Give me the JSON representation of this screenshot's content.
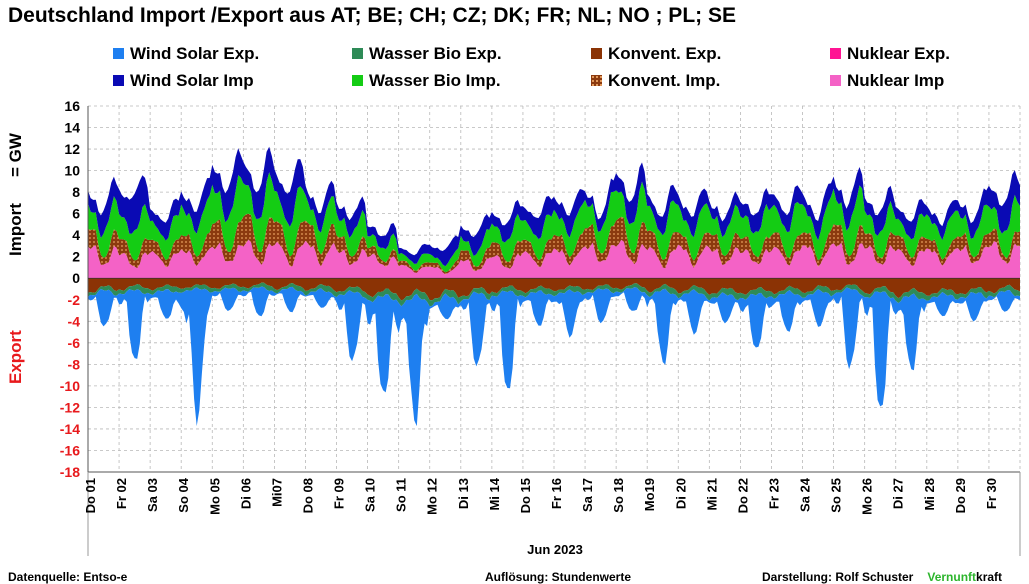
{
  "chart_data": {
    "type": "area",
    "title": "Deutschland  Import /Export  aus AT;  BE;  CH;  CZ;  DK;  FR;  NL;  NO ;  PL;  SE",
    "xlabel": "Jun 2023",
    "ylabel_import": "Import",
    "ylabel_unit": "=  GW",
    "ylabel_export": "Export",
    "ylim": [
      -18,
      16
    ],
    "y_ticks": [
      16,
      14,
      12,
      10,
      8,
      6,
      4,
      2,
      0,
      -2,
      -4,
      -6,
      -8,
      -10,
      -12,
      -14,
      -16,
      -18
    ],
    "grid": true,
    "legend_position": "top",
    "categories": [
      "Do 01",
      "Fr 02",
      "Sa 03",
      "So 04",
      "Mo 05",
      "Di 06",
      "Mi07",
      "Do 08",
      "Fr 09",
      "Sa 10",
      "So 11",
      "Mo 12",
      "Di 13",
      "Mi 14",
      "Do 15",
      "Fr 16",
      "Sa 17",
      "So 18",
      "Mo19",
      "Di 20",
      "Mi 21",
      "Do 22",
      "Fr 23",
      "Sa 24",
      "So 25",
      "Mo 26",
      "Di 27",
      "Mi 28",
      "Do 29",
      "Fr 30"
    ],
    "import_series": [
      {
        "name": "Nuklear Imp",
        "color": "#f462c6",
        "values": [
          2.8,
          2.2,
          2.4,
          2.6,
          3.0,
          3.2,
          3.0,
          3.1,
          2.6,
          2.2,
          1.2,
          1.0,
          1.6,
          2.0,
          2.4,
          2.7,
          3.0,
          3.2,
          2.6,
          2.8,
          2.7,
          2.6,
          2.8,
          2.9,
          3.0,
          2.8,
          2.6,
          2.7,
          2.8,
          3.1
        ]
      },
      {
        "name": "Konvent. Imp.",
        "color": "#8b3a0f",
        "values": [
          1.6,
          1.4,
          1.2,
          1.5,
          2.2,
          2.5,
          2.0,
          2.0,
          1.4,
          0.8,
          0.4,
          0.4,
          0.9,
          1.3,
          1.2,
          1.4,
          1.8,
          2.2,
          1.6,
          1.2,
          1.5,
          1.3,
          1.4,
          1.2,
          1.8,
          1.3,
          1.4,
          1.0,
          1.2,
          1.2
        ]
      },
      {
        "name": "Wasser Bio Imp.",
        "color": "#14cc14",
        "values": [
          2.6,
          3.0,
          2.2,
          3.0,
          3.8,
          3.6,
          3.4,
          2.6,
          2.4,
          1.4,
          0.8,
          0.8,
          1.4,
          2.2,
          2.3,
          2.5,
          2.7,
          3.2,
          2.8,
          2.8,
          2.4,
          2.6,
          3.0,
          2.7,
          3.4,
          2.6,
          2.0,
          2.5,
          2.4,
          2.8
        ]
      },
      {
        "name": "Wind Solar Imp",
        "color": "#0a0ab4",
        "values": [
          2.0,
          3.4,
          1.6,
          1.9,
          2.8,
          2.7,
          3.0,
          1.6,
          1.6,
          1.2,
          0.8,
          1.4,
          1.7,
          1.6,
          1.9,
          1.9,
          1.2,
          2.2,
          1.6,
          1.7,
          1.4,
          1.8,
          1.6,
          1.6,
          2.0,
          1.9,
          1.6,
          1.2,
          1.5,
          2.7
        ]
      }
    ],
    "export_series": [
      {
        "name": "Konvent. Exp.",
        "color": "#8b3305",
        "values": [
          -1.2,
          -1.0,
          -1.0,
          -0.9,
          -0.9,
          -0.8,
          -0.9,
          -1.0,
          -1.2,
          -1.6,
          -1.8,
          -1.8,
          -1.5,
          -1.2,
          -1.2,
          -1.1,
          -1.0,
          -0.9,
          -1.1,
          -1.2,
          -1.4,
          -1.4,
          -1.3,
          -1.2,
          -1.0,
          -1.3,
          -1.6,
          -1.5,
          -1.4,
          -1.2
        ]
      },
      {
        "name": "Nuklear Exp.",
        "color": "#ff1493",
        "values": [
          0,
          0,
          0,
          0,
          0,
          0,
          0,
          0,
          0,
          0,
          0,
          0,
          0,
          0,
          0,
          0,
          0,
          0,
          0,
          0,
          0,
          0,
          0,
          0,
          0,
          0,
          0,
          0,
          0,
          0
        ]
      },
      {
        "name": "Wasser Bio Exp.",
        "color": "#2e8b57",
        "values": [
          -0.4,
          -0.5,
          -0.5,
          -0.4,
          -0.4,
          -0.4,
          -0.4,
          -0.5,
          -0.5,
          -0.6,
          -0.6,
          -0.6,
          -0.5,
          -0.5,
          -0.5,
          -0.5,
          -0.4,
          -0.4,
          -0.5,
          -0.5,
          -0.6,
          -0.6,
          -0.5,
          -0.5,
          -0.4,
          -0.5,
          -0.6,
          -0.5,
          -0.5,
          -0.5
        ]
      },
      {
        "name": "Wind Solar Exp.",
        "color": "#1e7ff0",
        "values": [
          -3.0,
          -6.0,
          -2.5,
          -11.5,
          -2.0,
          -2.5,
          -2.0,
          -1.5,
          -6.0,
          -9.0,
          -11.0,
          -2.0,
          -6.0,
          -8.5,
          -3.0,
          -4.0,
          -3.0,
          -2.0,
          -6.0,
          -3.5,
          -2.5,
          -5.0,
          -3.5,
          -3.0,
          -6.5,
          -10.0,
          -6.5,
          -2.0,
          -2.5,
          -1.8
        ]
      }
    ]
  },
  "legend": [
    {
      "label": "Wind Solar Exp.",
      "color": "#1e7ff0"
    },
    {
      "label": "Wasser Bio Exp.",
      "color": "#2e8b57"
    },
    {
      "label": "Konvent. Exp.",
      "color": "#8b3305"
    },
    {
      "label": "Nuklear Exp.",
      "color": "#ff1493"
    },
    {
      "label": "Wind Solar Imp",
      "color": "#0a0ab4"
    },
    {
      "label": "Wasser Bio Imp.",
      "color": "#14cc14"
    },
    {
      "label": "Konvent. Imp.",
      "color": "#8b3a0f"
    },
    {
      "label": "Nuklear Imp",
      "color": "#f462c6"
    }
  ],
  "footer": {
    "source": "Datenquelle: Entso-e",
    "resolution": "Auflösung: Stundenwerte",
    "author": "Darstellung:  Rolf Schuster",
    "brand_green": "Vernunft",
    "brand_black": "kraft",
    "brand_color": "#2db52d"
  }
}
